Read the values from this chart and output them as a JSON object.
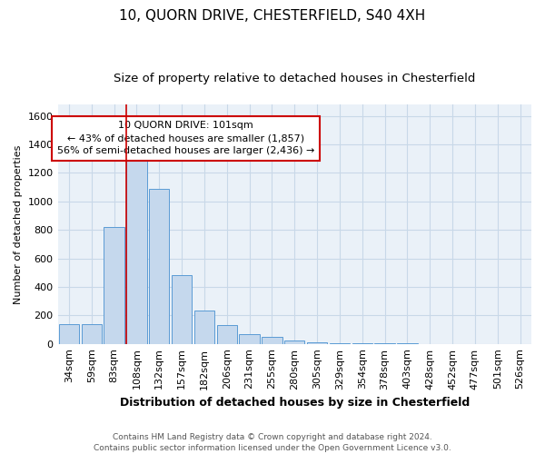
{
  "title1": "10, QUORN DRIVE, CHESTERFIELD, S40 4XH",
  "title2": "Size of property relative to detached houses in Chesterfield",
  "xlabel": "Distribution of detached houses by size in Chesterfield",
  "ylabel": "Number of detached properties",
  "categories": [
    "34sqm",
    "59sqm",
    "83sqm",
    "108sqm",
    "132sqm",
    "157sqm",
    "182sqm",
    "206sqm",
    "231sqm",
    "255sqm",
    "280sqm",
    "305sqm",
    "329sqm",
    "354sqm",
    "378sqm",
    "403sqm",
    "428sqm",
    "452sqm",
    "477sqm",
    "501sqm",
    "526sqm"
  ],
  "values": [
    140,
    140,
    820,
    1290,
    1090,
    480,
    235,
    130,
    65,
    50,
    25,
    10,
    7,
    3,
    2,
    2,
    1,
    1,
    1,
    1,
    1
  ],
  "bar_color": "#c5d8ed",
  "bar_edge_color": "#5b9bd5",
  "annotation_line1": "10 QUORN DRIVE: 101sqm",
  "annotation_line2": "← 43% of detached houses are smaller (1,857)",
  "annotation_line3": "56% of semi-detached houses are larger (2,436) →",
  "annotation_box_color": "#ffffff",
  "annotation_box_edge": "#cc0000",
  "vline_color": "#cc0000",
  "ylim": [
    0,
    1680
  ],
  "yticks": [
    0,
    200,
    400,
    600,
    800,
    1000,
    1200,
    1400,
    1600
  ],
  "grid_color": "#c8d8e8",
  "background_color": "#eaf1f8",
  "footer_text": "Contains HM Land Registry data © Crown copyright and database right 2024.\nContains public sector information licensed under the Open Government Licence v3.0.",
  "title1_fontsize": 11,
  "title2_fontsize": 9.5,
  "xlabel_fontsize": 9,
  "ylabel_fontsize": 8,
  "tick_fontsize": 8,
  "footer_fontsize": 6.5,
  "annot_fontsize": 8
}
